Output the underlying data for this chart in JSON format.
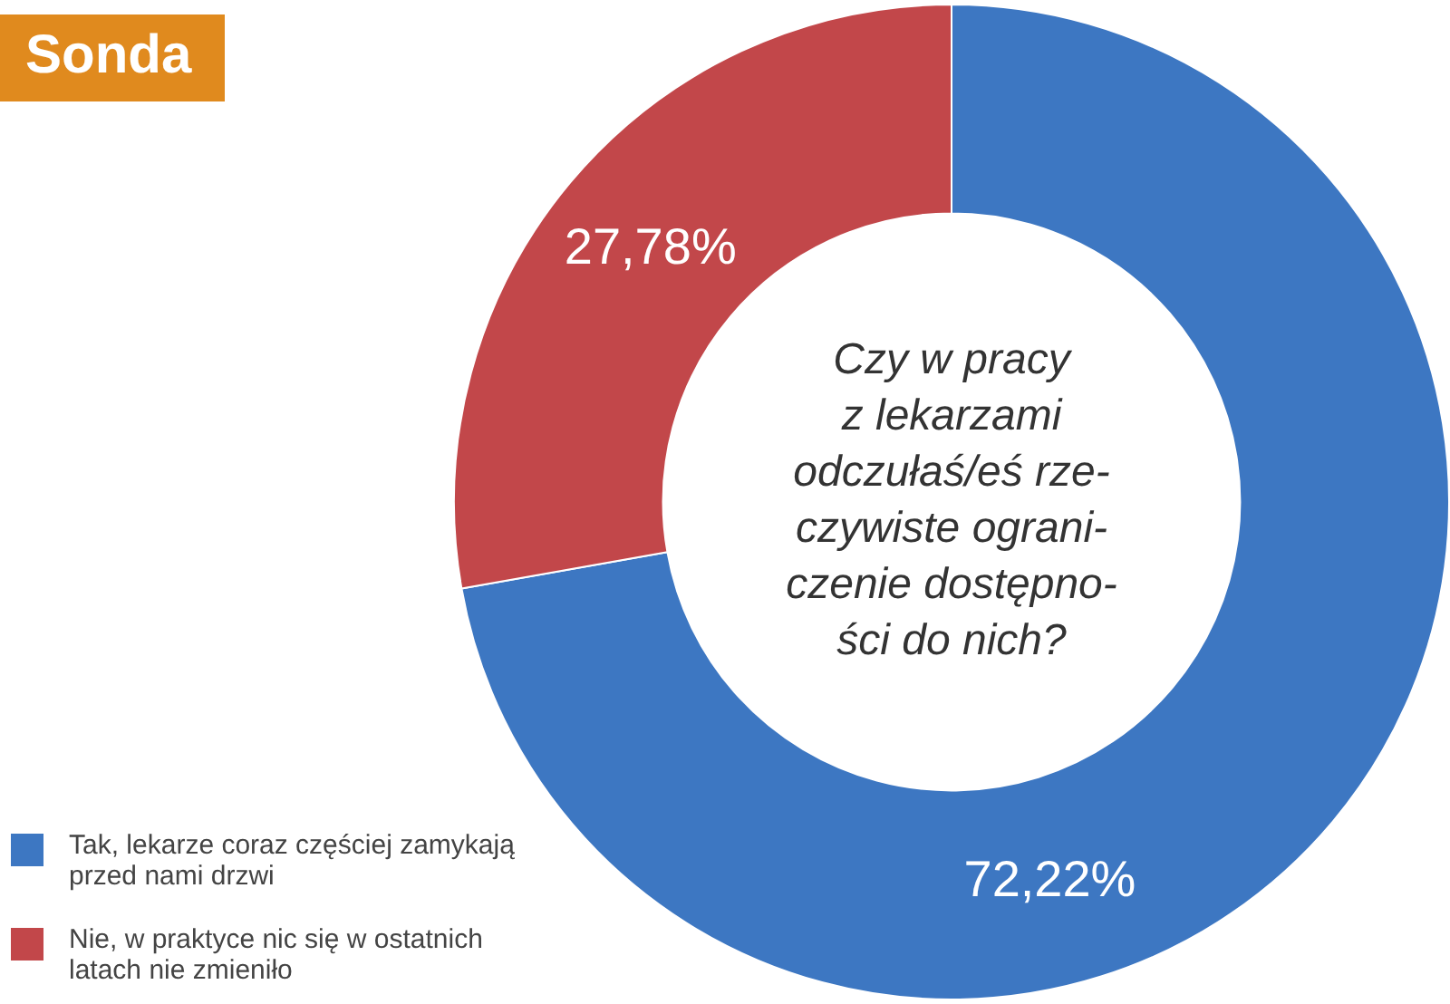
{
  "chart_data": {
    "type": "donut",
    "title": "Sonda",
    "categories": [
      "Tak, lekarze coraz częściej zamykają przed nami drzwi",
      "Nie, w praktyce nic się w ostatnich latach nie zmieniło"
    ],
    "values": [
      72.22,
      27.78
    ],
    "colors": [
      "#3d77c2",
      "#c2474a"
    ],
    "value_labels": [
      "72,22%",
      "27,78%"
    ],
    "annotations": [
      "Czy w pracy\nz lekarzami\nodczułaś/eś rze-\nczywiste ograni-\nczenie dostępno-\nści do nich?"
    ],
    "legend": "bottom left"
  }
}
